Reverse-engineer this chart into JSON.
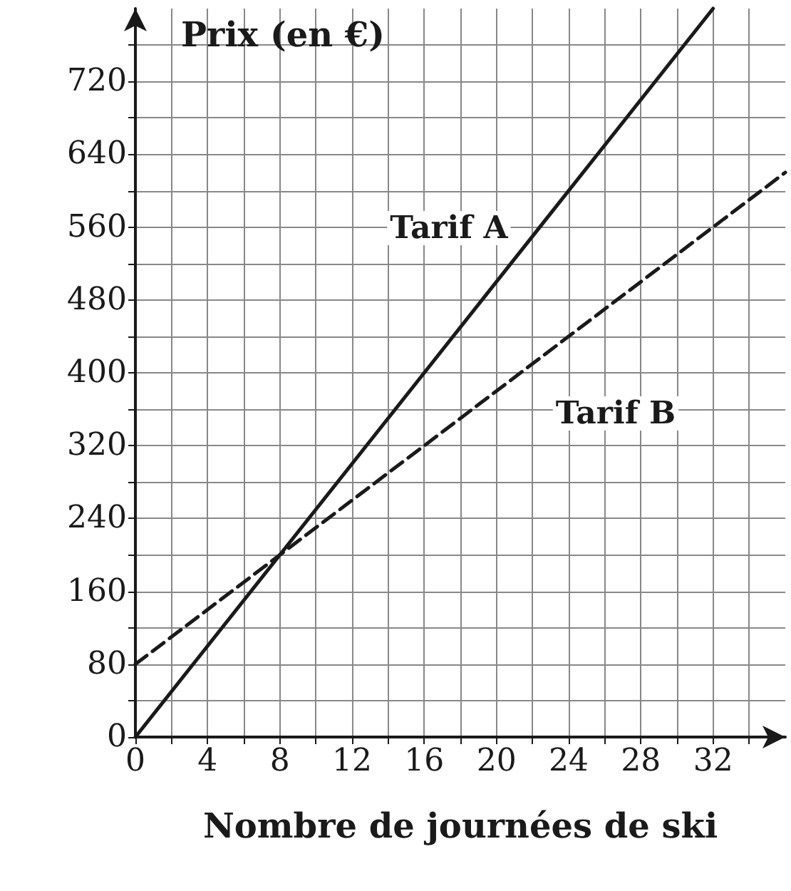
{
  "chart_data": {
    "type": "line",
    "xlabel": "Nombre de journées de ski",
    "ylabel": "Prix (en €)",
    "series": [
      {
        "name": "Tarif A",
        "x": [
          0,
          32
        ],
        "values": [
          0,
          800
        ],
        "color": "#1a1a1a",
        "line_style": "solid"
      },
      {
        "name": "Tarif B",
        "x": [
          0,
          36
        ],
        "values": [
          80,
          620
        ],
        "color": "#1a1a1a",
        "line_style": "dashed"
      }
    ],
    "xlim": [
      0,
      36
    ],
    "ylim": [
      0,
      800
    ],
    "xticks": [
      0,
      {
        "value": 2,
        "label": null
      },
      4,
      {
        "value": 6,
        "label": null
      },
      8,
      {
        "value": 10,
        "label": null
      },
      12,
      {
        "value": 14,
        "label": null
      },
      16,
      {
        "value": 18,
        "label": null
      },
      20,
      {
        "value": 22,
        "label": null
      },
      24,
      {
        "value": 26,
        "label": null
      },
      28,
      {
        "value": 30,
        "label": null
      },
      32,
      {
        "value": 34,
        "label": null
      }
    ],
    "yticks": [
      0,
      {
        "value": 40,
        "label": null
      },
      80,
      {
        "value": 120,
        "label": null
      },
      160,
      {
        "value": 200,
        "label": null
      },
      240,
      {
        "value": 280,
        "label": null
      },
      320,
      {
        "value": 360,
        "label": null
      },
      400,
      {
        "value": 440,
        "label": null
      },
      480,
      {
        "value": 520,
        "label": null
      },
      560,
      {
        "value": 600,
        "label": null
      },
      640,
      {
        "value": 680,
        "label": null
      },
      720,
      {
        "value": 760,
        "label": null
      }
    ],
    "grid": true,
    "marker": "none"
  }
}
